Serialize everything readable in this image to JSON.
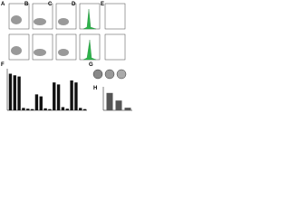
{
  "panels": {
    "labels": [
      "A",
      "B",
      "C",
      "D",
      "E",
      "F",
      "G",
      "H"
    ]
  },
  "figure_f": {
    "type": "bar",
    "values": [
      92,
      88,
      85,
      6,
      4,
      3,
      40,
      35,
      5,
      3,
      70,
      65,
      8,
      4,
      75,
      70,
      6,
      3
    ],
    "ylim": [
      0,
      100
    ],
    "color": "#111111"
  },
  "figure_h": {
    "type": "bar",
    "values": [
      80,
      45,
      12
    ],
    "ylim": [
      0,
      100
    ],
    "color": "#555555"
  }
}
